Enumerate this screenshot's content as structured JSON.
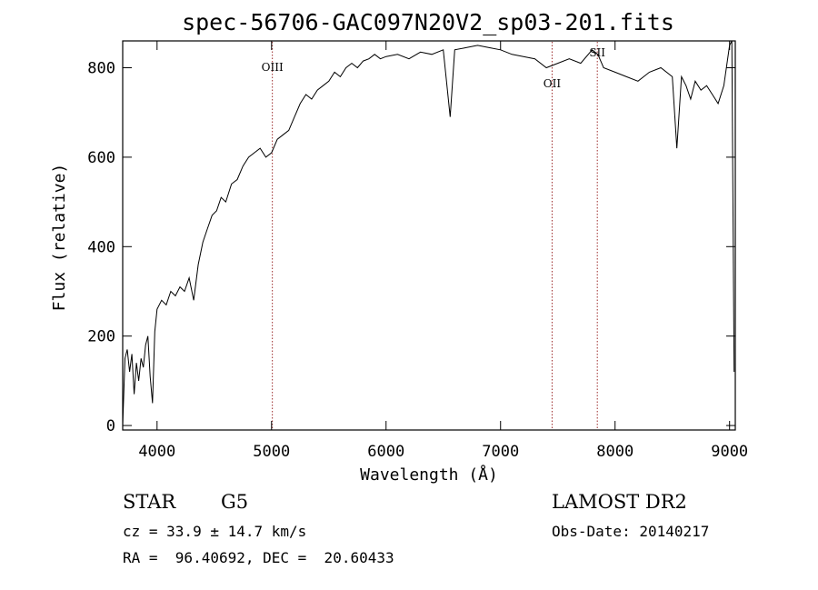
{
  "chart_data": {
    "type": "line",
    "title": "spec-56706-GAC097N20V2_sp03-201.fits",
    "xlabel": "Wavelength (Å)",
    "ylabel": "Flux (relative)",
    "xlim": [
      3700,
      9050
    ],
    "ylim": [
      -10,
      860
    ],
    "xticks": [
      4000,
      5000,
      6000,
      7000,
      8000,
      9000
    ],
    "yticks": [
      0,
      200,
      400,
      600,
      800
    ],
    "grid": false,
    "series": [
      {
        "color": "#000000",
        "x": [
          3700,
          3720,
          3740,
          3760,
          3780,
          3800,
          3820,
          3840,
          3860,
          3880,
          3900,
          3920,
          3940,
          3960,
          3980,
          4000,
          4040,
          4080,
          4120,
          4160,
          4200,
          4240,
          4280,
          4320,
          4360,
          4400,
          4440,
          4480,
          4520,
          4560,
          4600,
          4650,
          4700,
          4750,
          4800,
          4850,
          4900,
          4950,
          5000,
          5050,
          5100,
          5150,
          5200,
          5250,
          5300,
          5350,
          5400,
          5450,
          5500,
          5550,
          5600,
          5650,
          5700,
          5750,
          5800,
          5850,
          5900,
          5950,
          6000,
          6100,
          6200,
          6300,
          6400,
          6500,
          6560,
          6600,
          6700,
          6800,
          6900,
          7000,
          7100,
          7200,
          7300,
          7400,
          7500,
          7600,
          7700,
          7800,
          7850,
          7900,
          8000,
          8100,
          8200,
          8300,
          8400,
          8500,
          8540,
          8580,
          8620,
          8660,
          8700,
          8750,
          8800,
          8850,
          8900,
          8950,
          9000,
          9020,
          9040
        ],
        "y": [
          0,
          150,
          170,
          120,
          160,
          70,
          140,
          100,
          150,
          130,
          180,
          200,
          110,
          50,
          210,
          260,
          280,
          270,
          300,
          290,
          310,
          300,
          330,
          280,
          360,
          410,
          440,
          470,
          480,
          510,
          500,
          540,
          550,
          580,
          600,
          610,
          620,
          600,
          610,
          640,
          650,
          660,
          690,
          720,
          740,
          730,
          750,
          760,
          770,
          790,
          780,
          800,
          810,
          800,
          815,
          820,
          830,
          820,
          825,
          830,
          820,
          835,
          830,
          840,
          690,
          840,
          845,
          850,
          845,
          840,
          830,
          825,
          820,
          800,
          810,
          820,
          810,
          840,
          830,
          800,
          790,
          780,
          770,
          790,
          800,
          780,
          620,
          780,
          760,
          730,
          770,
          750,
          760,
          740,
          720,
          760,
          850,
          860,
          120
        ]
      }
    ],
    "markers": [
      {
        "label": "OIII",
        "x": 5007
      },
      {
        "label": "OII",
        "x": 7450
      },
      {
        "label": "SII",
        "x": 7845
      }
    ],
    "marker_color": "#9c2a2a"
  },
  "info": {
    "class": "STAR",
    "subclass": "G5",
    "survey": "LAMOST DR2",
    "cz": "cz = 33.9 ± 14.7 km/s",
    "obsdate": "Obs-Date: 20140217",
    "radec": "RA =  96.40692, DEC =  20.60433"
  }
}
